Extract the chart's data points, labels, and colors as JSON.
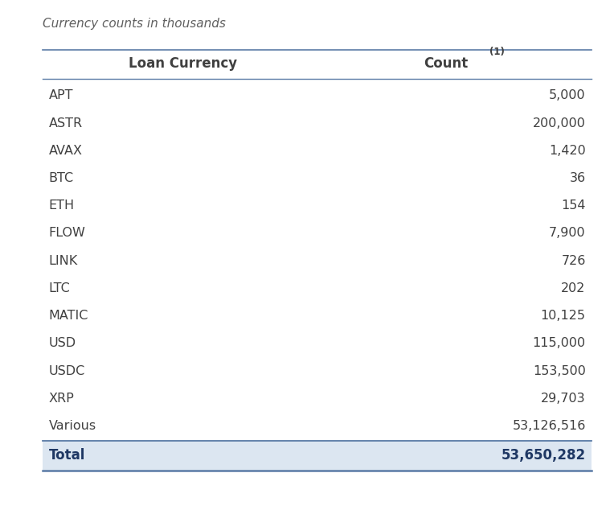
{
  "subtitle": "Currency counts in thousands",
  "col1_header": "Loan Currency",
  "col2_header": "Count",
  "col2_superscript": "(1)",
  "rows": [
    [
      "APT",
      "5,000"
    ],
    [
      "ASTR",
      "200,000"
    ],
    [
      "AVAX",
      "1,420"
    ],
    [
      "BTC",
      "36"
    ],
    [
      "ETH",
      "154"
    ],
    [
      "FLOW",
      "7,900"
    ],
    [
      "LINK",
      "726"
    ],
    [
      "LTC",
      "202"
    ],
    [
      "MATIC",
      "10,125"
    ],
    [
      "USD",
      "115,000"
    ],
    [
      "USDC",
      "153,500"
    ],
    [
      "XRP",
      "29,703"
    ],
    [
      "Various",
      "53,126,516"
    ]
  ],
  "total_label": "Total",
  "total_value": "53,650,282",
  "bg_color": "#ffffff",
  "header_line_color": "#5b7ba6",
  "total_row_bg": "#dce6f1",
  "text_color": "#404040",
  "header_text_color": "#404040",
  "total_text_color": "#1f3864",
  "subtitle_color": "#606060",
  "font_size": 11.5,
  "header_font_size": 12,
  "subtitle_font_size": 11,
  "total_font_size": 12
}
